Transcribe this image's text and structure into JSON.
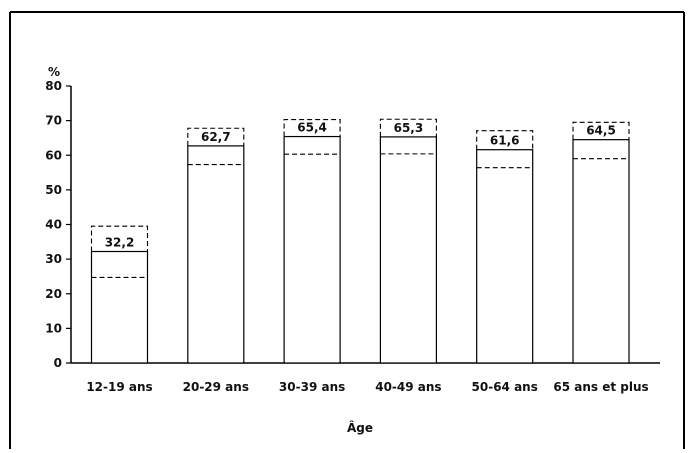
{
  "chart_data": {
    "type": "bar",
    "categories": [
      "12-19 ans",
      "20-29 ans",
      "30-39 ans",
      "40-49 ans",
      "50-64 ans",
      "65 ans et plus"
    ],
    "values": [
      32.2,
      62.7,
      65.4,
      65.3,
      61.6,
      64.5
    ],
    "value_labels": [
      "32,2",
      "62,7",
      "65,4",
      "65,3",
      "61,6",
      "64,5"
    ],
    "ci_lower": [
      24.7,
      57.3,
      60.3,
      60.4,
      56.4,
      59.0
    ],
    "ci_upper": [
      39.5,
      67.8,
      70.3,
      70.4,
      67.1,
      69.5
    ],
    "ylabel": "%",
    "xlabel": "Âge",
    "yticks": [
      0,
      10,
      20,
      30,
      40,
      50,
      60,
      70,
      80
    ],
    "ylim": [
      0,
      80
    ],
    "grid": false,
    "bar_fill": "#ffffff",
    "stroke_color": "#000000"
  }
}
